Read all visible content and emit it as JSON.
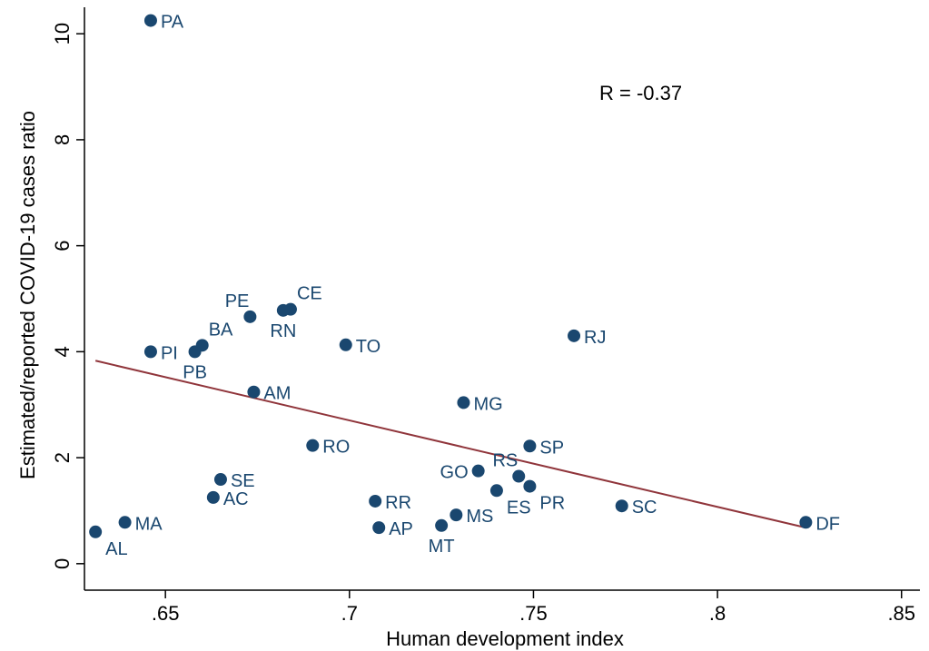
{
  "colors": {
    "marker": "#1a476f",
    "fit_line": "#90353b",
    "axis": "#000000",
    "background": "#ffffff"
  },
  "chart_data": {
    "type": "scatter",
    "xlabel": "Human development index",
    "ylabel": "Estimated/reported COVID-19 cases ratio",
    "annotation": "R = -0.37",
    "xlim": [
      0.628,
      0.855
    ],
    "ylim": [
      -0.5,
      10.5
    ],
    "x_ticks": [
      {
        "value": 0.65,
        "label": ".65"
      },
      {
        "value": 0.7,
        "label": ".7"
      },
      {
        "value": 0.75,
        "label": ".75"
      },
      {
        "value": 0.8,
        "label": ".8"
      },
      {
        "value": 0.85,
        "label": ".85"
      }
    ],
    "y_ticks": [
      {
        "value": 0,
        "label": "0"
      },
      {
        "value": 2,
        "label": "2"
      },
      {
        "value": 4,
        "label": "4"
      },
      {
        "value": 6,
        "label": "6"
      },
      {
        "value": 8,
        "label": "8"
      },
      {
        "value": 10,
        "label": "10"
      }
    ],
    "grid": false,
    "legend": "none",
    "points": [
      {
        "label": "PA",
        "x": 0.646,
        "y": 10.25,
        "label_pos": "right"
      },
      {
        "label": "PE",
        "x": 0.673,
        "y": 4.66,
        "label_pos": "upleft"
      },
      {
        "label": "CE",
        "x": 0.684,
        "y": 4.8,
        "label_pos": "upright"
      },
      {
        "label": "RN",
        "x": 0.682,
        "y": 4.78,
        "label_pos": "below"
      },
      {
        "label": "BA",
        "x": 0.66,
        "y": 4.12,
        "label_pos": "upright"
      },
      {
        "label": "PI",
        "x": 0.646,
        "y": 4.0,
        "label_pos": "right"
      },
      {
        "label": "PB",
        "x": 0.658,
        "y": 4.0,
        "label_pos": "below"
      },
      {
        "label": "TO",
        "x": 0.699,
        "y": 4.13,
        "label_pos": "right"
      },
      {
        "label": "RJ",
        "x": 0.761,
        "y": 4.3,
        "label_pos": "right"
      },
      {
        "label": "AM",
        "x": 0.674,
        "y": 3.24,
        "label_pos": "right"
      },
      {
        "label": "MG",
        "x": 0.731,
        "y": 3.04,
        "label_pos": "right"
      },
      {
        "label": "RO",
        "x": 0.69,
        "y": 2.23,
        "label_pos": "right"
      },
      {
        "label": "SP",
        "x": 0.749,
        "y": 2.22,
        "label_pos": "right"
      },
      {
        "label": "SE",
        "x": 0.665,
        "y": 1.59,
        "label_pos": "right"
      },
      {
        "label": "GO",
        "x": 0.735,
        "y": 1.75,
        "label_pos": "left"
      },
      {
        "label": "RS",
        "x": 0.746,
        "y": 1.65,
        "label_pos": "upleft"
      },
      {
        "label": "PR",
        "x": 0.749,
        "y": 1.46,
        "label_pos": "downright"
      },
      {
        "label": "ES",
        "x": 0.74,
        "y": 1.38,
        "label_pos": "downright"
      },
      {
        "label": "AC",
        "x": 0.663,
        "y": 1.25,
        "label_pos": "right"
      },
      {
        "label": "RR",
        "x": 0.707,
        "y": 1.18,
        "label_pos": "right"
      },
      {
        "label": "SC",
        "x": 0.774,
        "y": 1.09,
        "label_pos": "right"
      },
      {
        "label": "MS",
        "x": 0.729,
        "y": 0.92,
        "label_pos": "right"
      },
      {
        "label": "MA",
        "x": 0.639,
        "y": 0.78,
        "label_pos": "right"
      },
      {
        "label": "DF",
        "x": 0.824,
        "y": 0.78,
        "label_pos": "right"
      },
      {
        "label": "MT",
        "x": 0.725,
        "y": 0.72,
        "label_pos": "below"
      },
      {
        "label": "AP",
        "x": 0.708,
        "y": 0.68,
        "label_pos": "right"
      },
      {
        "label": "AL",
        "x": 0.631,
        "y": 0.6,
        "label_pos": "downright"
      }
    ],
    "fit_line": {
      "x": [
        0.631,
        0.824
      ],
      "y": [
        3.83,
        0.68
      ]
    }
  }
}
